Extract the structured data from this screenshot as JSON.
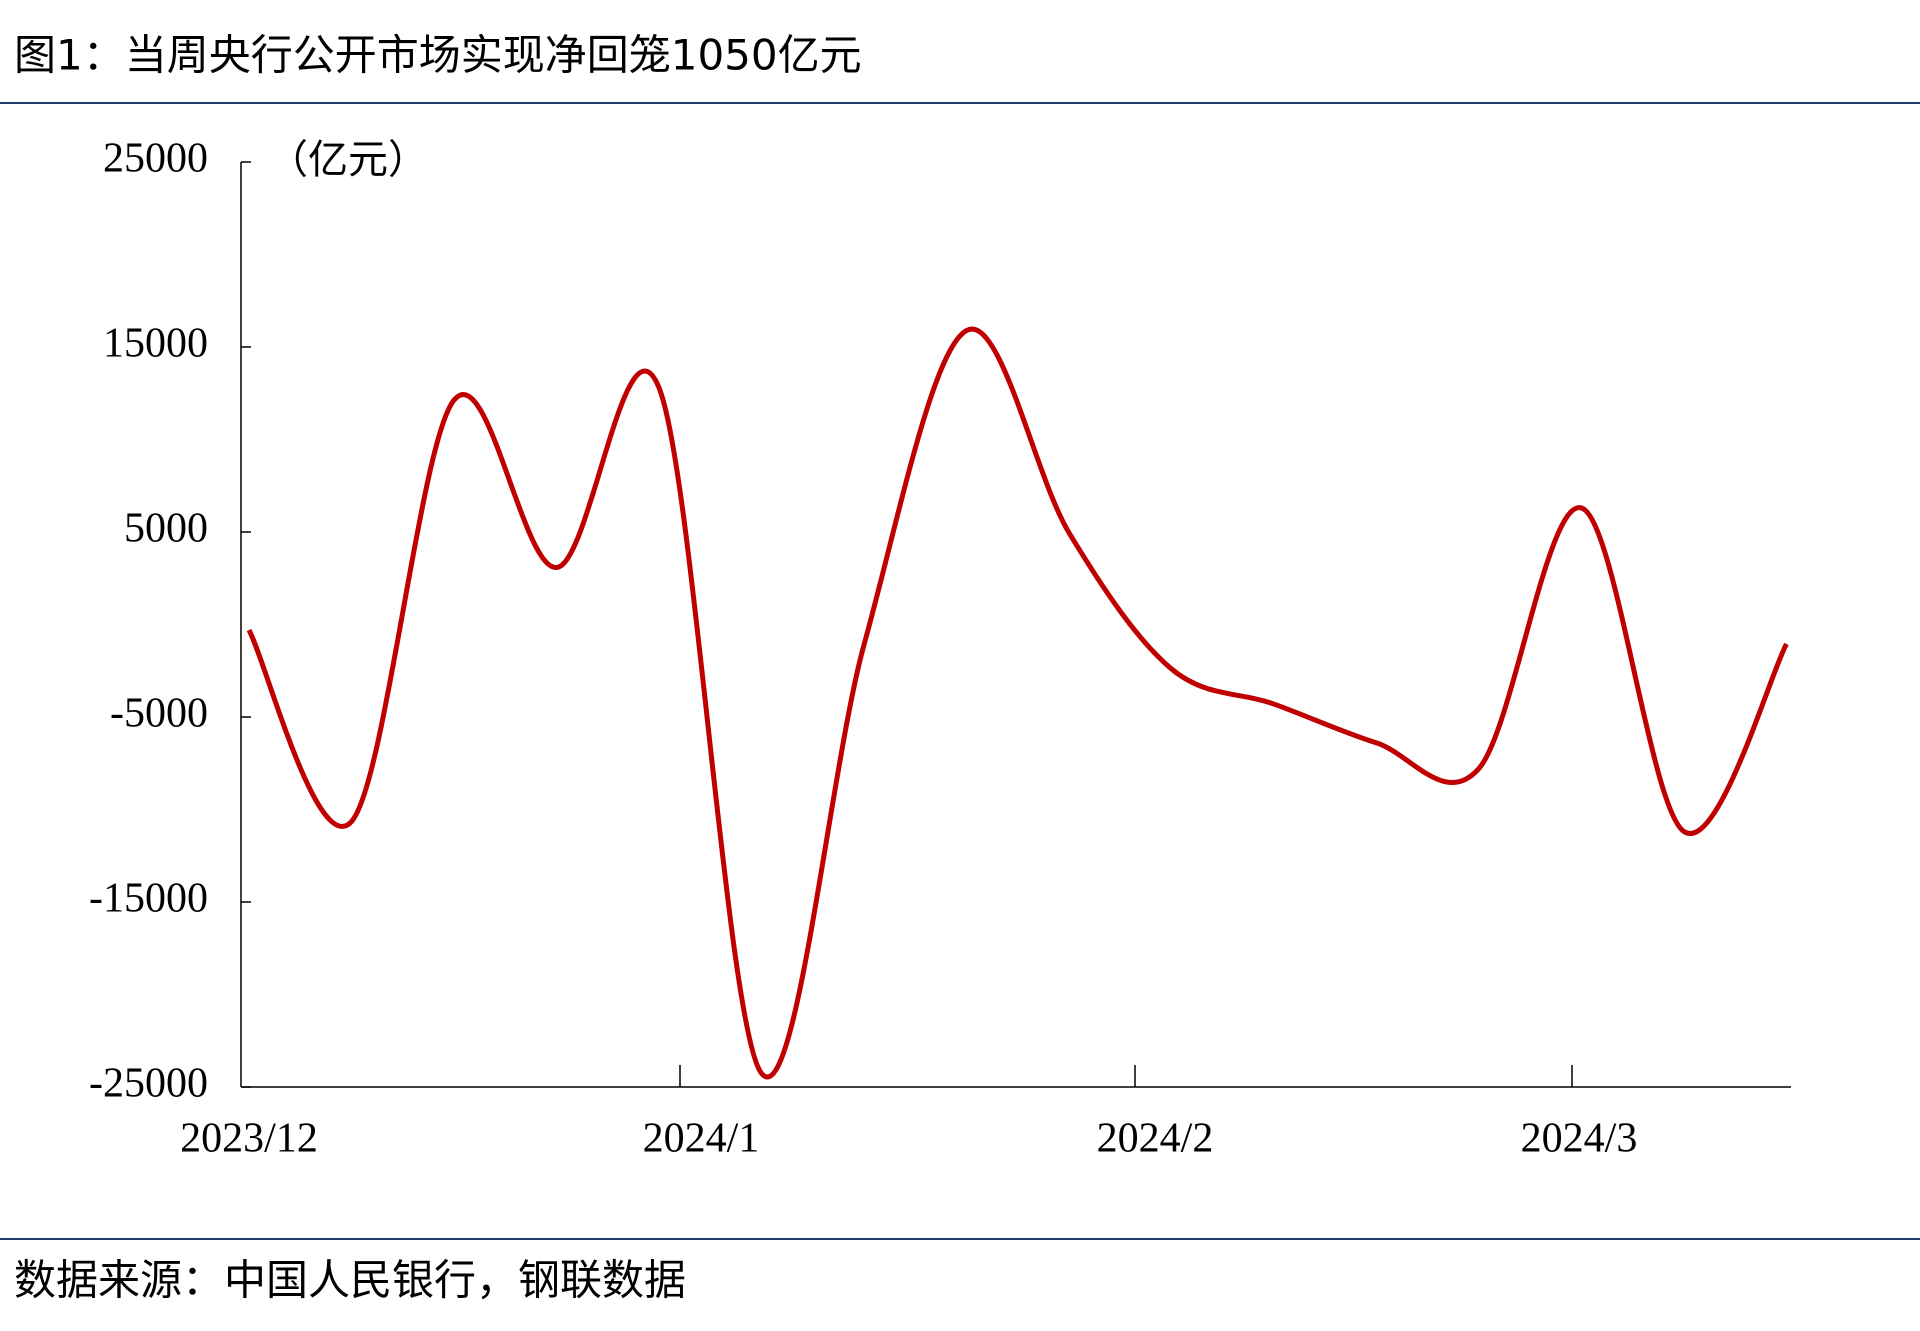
{
  "chart_data": {
    "type": "line",
    "title": "图1：当周央行公开市场实现净回笼1050亿元",
    "y_unit": "（亿元）",
    "source": "数据来源：中国人民银行，钢联数据",
    "categories": [
      null,
      null,
      null,
      null,
      null,
      null,
      null,
      null,
      null,
      null,
      null,
      null,
      null,
      null,
      null,
      null
    ],
    "x_labels": [
      "2023/12",
      "2024/1",
      "2024/2",
      "2024/3"
    ],
    "series": [
      {
        "color": "#c00000",
        "values": [
          -300,
          -10650,
          12130,
          3080,
          12800,
          -24260,
          -1100,
          15890,
          4960,
          -2400,
          -4300,
          -6400,
          -7780,
          6300,
          -11190,
          -1050
        ]
      }
    ],
    "ylim": [
      -25000,
      25000
    ],
    "yticks": [
      -25000,
      -15000,
      -5000,
      5000,
      15000,
      25000
    ]
  }
}
